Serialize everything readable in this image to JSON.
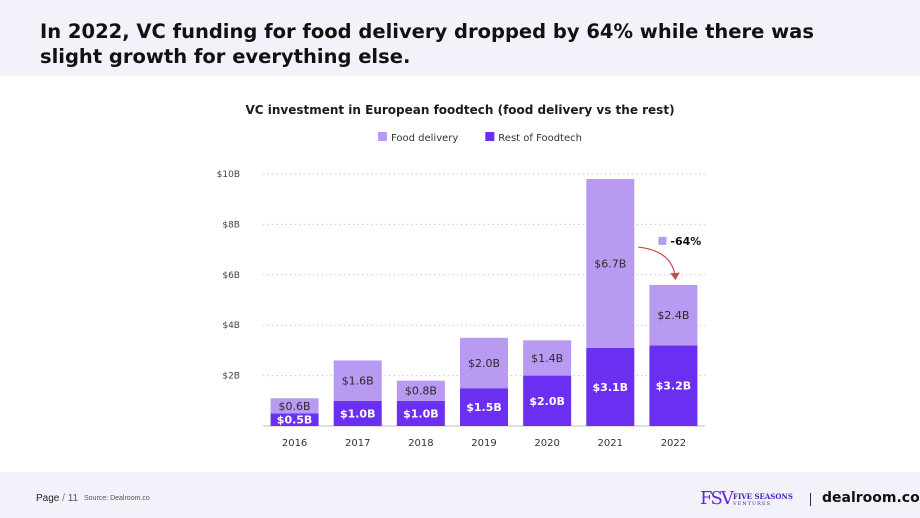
{
  "headline": "In 2022, VC funding for food delivery dropped by 64% while there was slight growth for everything else.",
  "chart_data": {
    "type": "bar",
    "stacked": true,
    "title": "VC investment in European foodtech (food delivery vs the rest)",
    "categories": [
      "2016",
      "2017",
      "2018",
      "2019",
      "2020",
      "2021",
      "2022"
    ],
    "series": [
      {
        "name": "Rest of Foodtech",
        "color": "#6a2ff0",
        "values": [
          0.5,
          1.0,
          1.0,
          1.5,
          2.0,
          3.1,
          3.2
        ],
        "labels": [
          "$0.5B",
          "$1.0B",
          "$1.0B",
          "$1.5B",
          "$2.0B",
          "$3.1B",
          "$3.2B"
        ]
      },
      {
        "name": "Food delivery",
        "color": "#b89af2",
        "values": [
          0.6,
          1.6,
          0.8,
          2.0,
          1.4,
          6.7,
          2.4
        ],
        "labels": [
          "$0.6B",
          "$1.6B",
          "$0.8B",
          "$2.0B",
          "$1.4B",
          "$6.7B",
          "$2.4B"
        ]
      }
    ],
    "yticks": [
      2,
      4,
      6,
      8,
      10
    ],
    "ytick_labels": [
      "$2B",
      "$4B",
      "$6B",
      "$8B",
      "$10B"
    ],
    "ylim": [
      0,
      10
    ],
    "grid": true,
    "legend": "top-center",
    "legend_order": [
      "Food delivery",
      "Rest of Foodtech"
    ],
    "annotation": {
      "text": "-64%",
      "from_category": "2021",
      "to_category": "2022",
      "arrow_color": "#c0504d"
    }
  },
  "footer": {
    "page_label": "Page",
    "page_separator": "/",
    "page_number": "11",
    "source": "Source: Dealroom.co",
    "partner_logo_mark": "FSV",
    "partner_name": "FIVE SEASONS",
    "partner_subtitle": "VENTURES",
    "brand": "dealroom.co"
  }
}
